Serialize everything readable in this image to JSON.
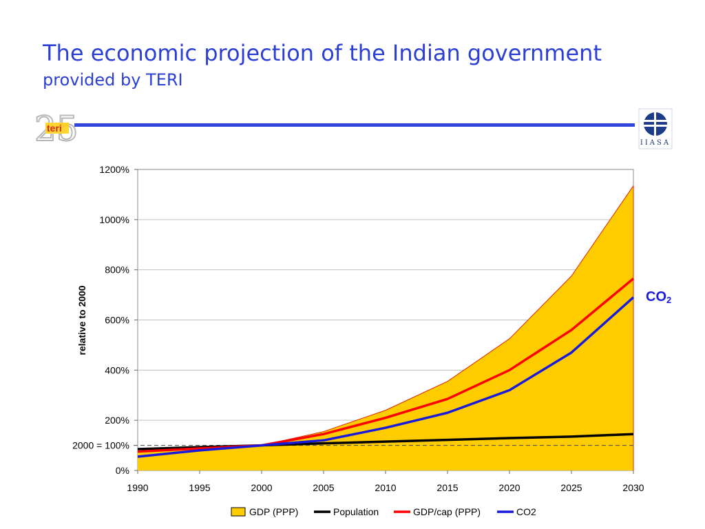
{
  "slide": {
    "title": "The economic projection of the Indian government",
    "subtitle": "provided by TERI",
    "left_logo": {
      "icon": "teri-25-logo-icon",
      "text": "teri"
    },
    "right_logo": {
      "icon": "iiasa-globe-icon",
      "text": "IIASA"
    },
    "rule_color": "#3344dd",
    "title_color": "#2b3fd6"
  },
  "annotation": {
    "main": "CO",
    "sub": "2",
    "color": "#1a1adb"
  },
  "chart_data": {
    "type": "line",
    "x": [
      1990,
      1995,
      2000,
      2005,
      2010,
      2015,
      2020,
      2025,
      2030
    ],
    "xlim": [
      1990,
      2030
    ],
    "ylim": [
      0,
      1200
    ],
    "yticks": [
      {
        "value": 0,
        "label": "0%"
      },
      {
        "value": 100,
        "label": "2000 = 100%"
      },
      {
        "value": 200,
        "label": "200%"
      },
      {
        "value": 400,
        "label": "400%"
      },
      {
        "value": 600,
        "label": "600%"
      },
      {
        "value": 800,
        "label": "800%"
      },
      {
        "value": 1000,
        "label": "1000%"
      },
      {
        "value": 1200,
        "label": "1200%"
      }
    ],
    "xticks": [
      "1990",
      "1995",
      "2000",
      "2005",
      "2010",
      "2015",
      "2020",
      "2025",
      "2030"
    ],
    "ylabel": "relative to 2000",
    "xlabel": "",
    "grid": "horizontal",
    "reference_line": {
      "value": 100,
      "style": "dashed"
    },
    "legend_position": "bottom-center",
    "series": [
      {
        "name": "GDP (PPP)",
        "kind": "area",
        "fill": "#ffcc00",
        "stroke": "#dd2200",
        "values": [
          75,
          88,
          100,
          155,
          240,
          355,
          525,
          775,
          1135
        ]
      },
      {
        "name": "Population",
        "kind": "line",
        "color": "#000000",
        "values": [
          85,
          93,
          100,
          108,
          115,
          122,
          129,
          135,
          145
        ]
      },
      {
        "name": "GDP/cap (PPP)",
        "kind": "line",
        "color": "#ff0000",
        "values": [
          75,
          88,
          100,
          145,
          210,
          285,
          400,
          560,
          765
        ]
      },
      {
        "name": "CO2",
        "kind": "line",
        "color": "#1a1adb",
        "values": [
          55,
          80,
          100,
          120,
          170,
          230,
          320,
          470,
          690
        ]
      }
    ]
  }
}
